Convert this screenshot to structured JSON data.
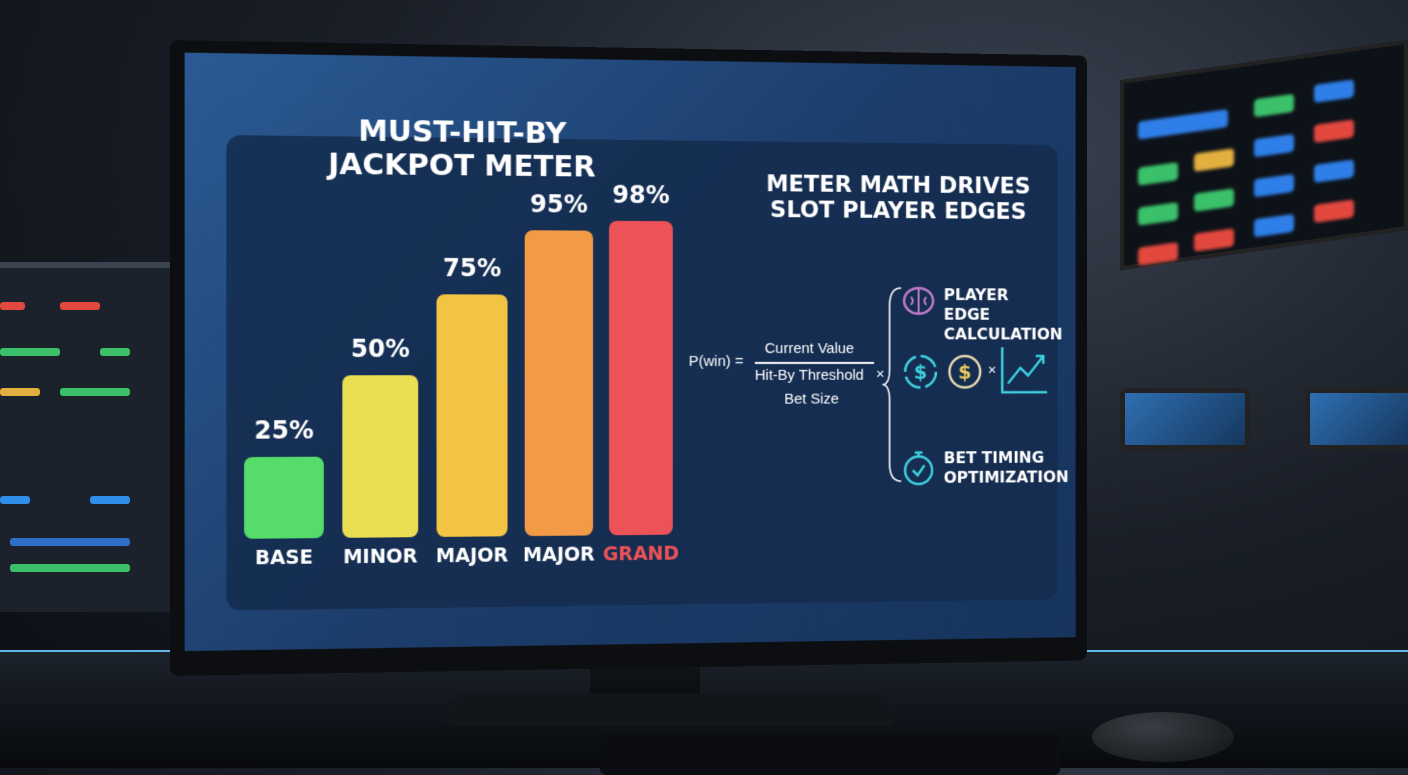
{
  "chart_data": {
    "type": "bar",
    "title": "MUST-HIT-BY JACKPOT METER",
    "categories": [
      "BASE",
      "MINOR",
      "MAJOR",
      "MAJOR",
      "GRAND"
    ],
    "values": [
      25,
      50,
      75,
      95,
      98
    ],
    "value_labels": [
      "25%",
      "50%",
      "75%",
      "95%",
      "98%"
    ],
    "colors": [
      "#56dc6a",
      "#eadf52",
      "#f3c444",
      "#f29a46",
      "#ec5256"
    ],
    "category_label_colors": [
      "#ffffff",
      "#ffffff",
      "#ffffff",
      "#ffffff",
      "#ec5256"
    ],
    "xlabel": "",
    "ylabel": "",
    "ylim": [
      0,
      100
    ],
    "grid": false
  },
  "right": {
    "title": "METER MATH DRIVES SLOT PLAYER EDGES",
    "formula": {
      "lhs": "P(win) =",
      "numerator": "Current Value",
      "denominator": "Hit-By Threshold",
      "extra": "Bet Size",
      "times": "×"
    },
    "items": [
      {
        "icon": "brain-icon",
        "label": "PLAYER EDGE CALCULATION"
      },
      {
        "icon": "dollar-cycle-icon",
        "label": ""
      },
      {
        "icon": "stopwatch-icon",
        "label": "BET TIMING OPTIMIZATION"
      }
    ],
    "middle_times": "×"
  },
  "colors": {
    "accent": "#3ed0e0",
    "screen": "#1c3d6a"
  }
}
